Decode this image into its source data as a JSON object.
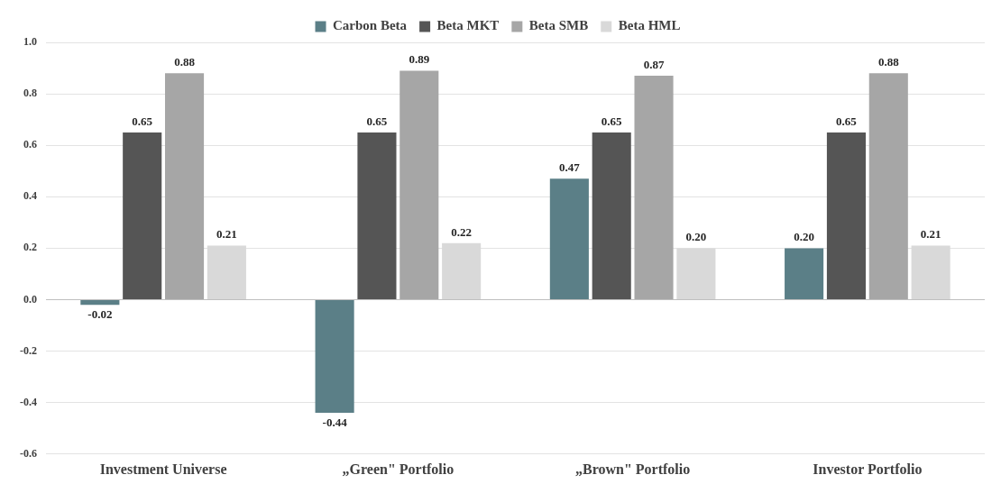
{
  "chart_data": {
    "type": "bar",
    "categories": [
      "Investment Universe",
      "„Green\" Portfolio",
      "„Brown\" Portfolio",
      "Investor Portfolio"
    ],
    "series": [
      {
        "name": "Carbon Beta",
        "color": "#5b7f87",
        "values": [
          -0.02,
          -0.44,
          0.47,
          0.2
        ],
        "value_labels": [
          "-0.02",
          "-0.44",
          "0.47",
          "0.20"
        ]
      },
      {
        "name": "Beta MKT",
        "color": "#555555",
        "values": [
          0.65,
          0.65,
          0.65,
          0.65
        ],
        "value_labels": [
          "0.65",
          "0.65",
          "0.65",
          "0.65"
        ]
      },
      {
        "name": "Beta SMB",
        "color": "#a6a6a6",
        "values": [
          0.88,
          0.89,
          0.87,
          0.88
        ],
        "value_labels": [
          "0.88",
          "0.89",
          "0.87",
          "0.88"
        ]
      },
      {
        "name": "Beta HML",
        "color": "#d9d9d9",
        "values": [
          0.21,
          0.22,
          0.2,
          0.21
        ],
        "value_labels": [
          "0.21",
          "0.22",
          "0.20",
          "0.21"
        ]
      }
    ],
    "ylim": [
      -0.6,
      1.0
    ],
    "yticks": [
      {
        "value": -0.6,
        "label": "-0.6"
      },
      {
        "value": -0.4,
        "label": "-0.4"
      },
      {
        "value": -0.2,
        "label": "-0.2"
      },
      {
        "value": 0,
        "label": "0.0"
      },
      {
        "value": 0.2,
        "label": "0.2"
      },
      {
        "value": 0.4,
        "label": "0.4"
      },
      {
        "value": 0.6,
        "label": "0.6"
      },
      {
        "value": 0.8,
        "label": "0.8"
      },
      {
        "value": 1.0,
        "label": "1.0"
      }
    ],
    "grid": "y",
    "legend": "top"
  }
}
